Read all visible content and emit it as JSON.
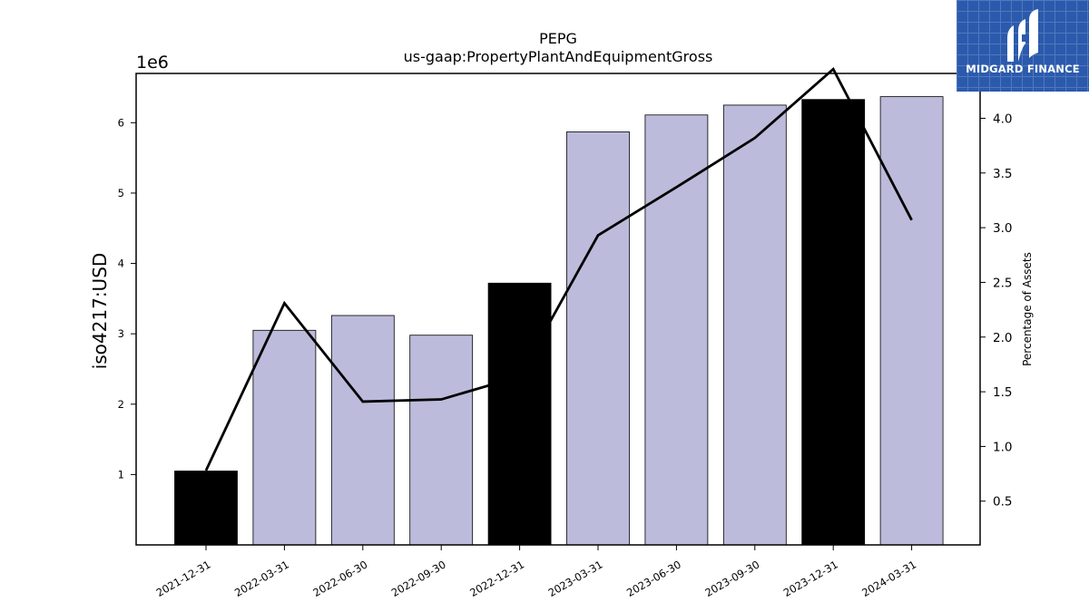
{
  "chart_data": {
    "type": "bar",
    "title": "PEPG",
    "subtitle": "us-gaap:PropertyPlantAndEquipmentGross",
    "ylabel": "iso4217:USD",
    "y_offset_label": "1e6",
    "y2label": "Percentage of Assets",
    "categories": [
      "2021-12-31",
      "2022-03-31",
      "2022-06-30",
      "2022-09-30",
      "2022-12-31",
      "2023-03-31",
      "2023-06-30",
      "2023-09-30",
      "2023-12-31",
      "2024-03-31"
    ],
    "values": [
      1050000,
      3050000,
      3260000,
      2980000,
      3720000,
      5870000,
      6110000,
      6250000,
      6330000,
      6370000
    ],
    "highlight": [
      true,
      false,
      false,
      false,
      true,
      false,
      false,
      false,
      true,
      false
    ],
    "line_values": [
      0.78,
      2.31,
      1.41,
      1.43,
      1.64,
      2.93,
      3.37,
      3.82,
      4.45,
      3.07
    ],
    "ylim": [
      0,
      6700000
    ],
    "y2lim": [
      0.1,
      4.41
    ],
    "yticks": [
      1,
      2,
      3,
      4,
      5,
      6
    ],
    "y2ticks": [
      "0.5",
      "1.0",
      "1.5",
      "2.0",
      "2.5",
      "3.0",
      "3.5",
      "4.0"
    ],
    "grid": false,
    "colors": {
      "bar": "#bdbbdb",
      "highlight_bar": "#000000",
      "line": "#000000"
    }
  },
  "logo": {
    "text": "MIDGARD FINANCE",
    "icon": "midgard-logo-icon",
    "color": "#2b5aad"
  }
}
